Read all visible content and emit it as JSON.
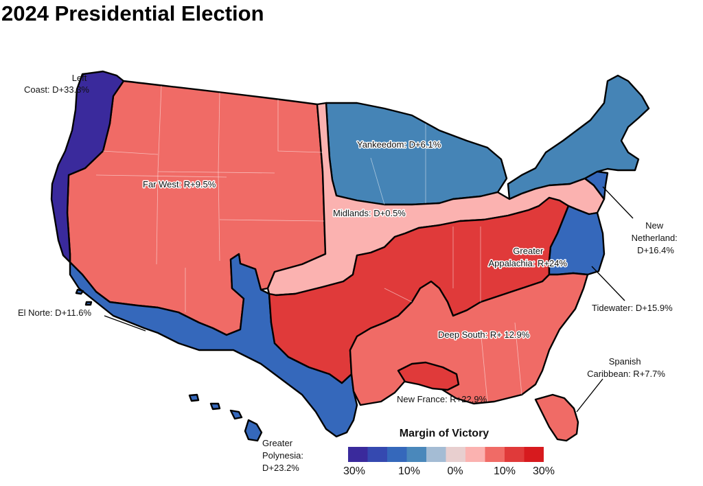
{
  "title": "2024 Presidential Election",
  "regions": [
    {
      "key": "left_coast",
      "label_lines": [
        "Left",
        "Coast: D+33.3%"
      ],
      "color": "#3a2a9c"
    },
    {
      "key": "far_west",
      "label_lines": [
        "Far West: R+9.5%"
      ],
      "color": "#f06b66"
    },
    {
      "key": "yankeedom",
      "label_lines": [
        "Yankeedom: D+6.1%"
      ],
      "color": "#4584b6"
    },
    {
      "key": "midlands",
      "label_lines": [
        "Midlands: D+0.5%"
      ],
      "color": "#fbb2b0"
    },
    {
      "key": "new_netherland",
      "label_lines": [
        "New",
        "Netherland:",
        "D+16.4%"
      ],
      "color": "#3568bb"
    },
    {
      "key": "greater_appalachia",
      "label_lines": [
        "Greater",
        "Appalachia: R+24%"
      ],
      "color": "#e03a3a"
    },
    {
      "key": "tidewater",
      "label_lines": [
        "Tidewater: D+15.9%"
      ],
      "color": "#3568bb"
    },
    {
      "key": "el_norte",
      "label_lines": [
        "El Norte: D+11.6%"
      ],
      "color": "#3568bb"
    },
    {
      "key": "deep_south",
      "label_lines": [
        "Deep South: R+ 12.9%"
      ],
      "color": "#f06b66"
    },
    {
      "key": "new_france",
      "label_lines": [
        "New France: R+22.9%"
      ],
      "color": "#e03a3a"
    },
    {
      "key": "spanish_caribbean",
      "label_lines": [
        "Spanish",
        "Caribbean: R+7.7%"
      ],
      "color": "#f06b66"
    },
    {
      "key": "greater_polynesia",
      "label_lines": [
        "Greater",
        "Polynesia:",
        "D+23.2%"
      ],
      "color": "#3568bb"
    }
  ],
  "legend": {
    "title": "Margin of Victory",
    "colors": [
      "#3a2a9c",
      "#3549b0",
      "#3568bb",
      "#4a88bb",
      "#a4bcd4",
      "#e8cfcf",
      "#fbb2b0",
      "#f06b66",
      "#e03a3a",
      "#d71a1e"
    ],
    "tick_labels": [
      "30%",
      "10%",
      "0%",
      "10%",
      "30%"
    ]
  }
}
